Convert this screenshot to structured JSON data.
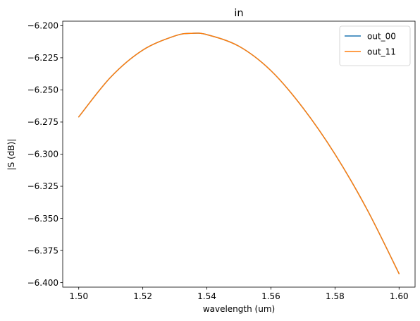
{
  "chart_data": {
    "type": "line",
    "title": "in",
    "xlabel": "wavelength (um)",
    "ylabel": "|S (dB)|",
    "xlim": [
      1.495,
      1.605
    ],
    "ylim": [
      -6.4035,
      -6.1965
    ],
    "xticks": [
      "1.50",
      "1.52",
      "1.54",
      "1.56",
      "1.58",
      "1.60"
    ],
    "yticks": [
      "−6.200",
      "−6.225",
      "−6.250",
      "−6.275",
      "−6.300",
      "−6.325",
      "−6.350",
      "−6.375",
      "−6.400"
    ],
    "grid": false,
    "legend": "top-right",
    "series": [
      {
        "name": "out_00",
        "color": "#1f77b4",
        "x": [
          1.5,
          1.51,
          1.52,
          1.53,
          1.535,
          1.54,
          1.55,
          1.56,
          1.57,
          1.58,
          1.59,
          1.6
        ],
        "y": [
          -6.271,
          -6.24,
          -6.219,
          -6.208,
          -6.206,
          -6.207,
          -6.216,
          -6.235,
          -6.264,
          -6.3,
          -6.343,
          -6.393
        ]
      },
      {
        "name": "out_11",
        "color": "#ff7f0e",
        "x": [
          1.5,
          1.51,
          1.52,
          1.53,
          1.535,
          1.54,
          1.55,
          1.56,
          1.57,
          1.58,
          1.59,
          1.6
        ],
        "y": [
          -6.271,
          -6.24,
          -6.219,
          -6.208,
          -6.206,
          -6.207,
          -6.216,
          -6.235,
          -6.264,
          -6.3,
          -6.343,
          -6.393
        ]
      }
    ]
  }
}
